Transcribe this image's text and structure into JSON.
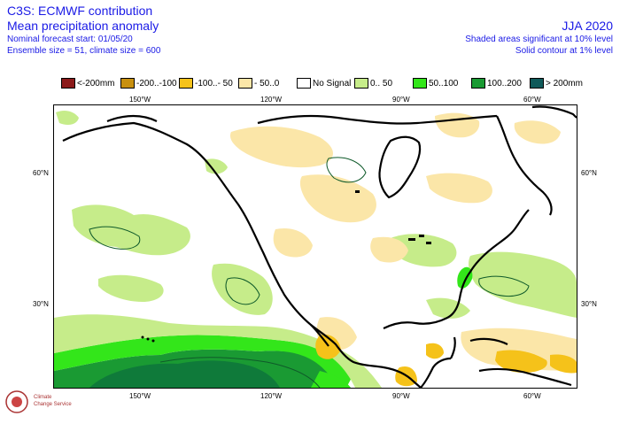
{
  "header": {
    "title": "C3S: ECMWF contribution",
    "subtitle": "Mean precipitation anomaly",
    "forecast_start": "Nominal forecast start: 01/05/20",
    "ensemble": "Ensemble size = 51, climate size = 600",
    "season": "JJA 2020",
    "note_shaded": "Shaded areas significant at 10% level",
    "note_contour": "Solid contour at 1% level"
  },
  "legend": [
    {
      "label": "<-200mm",
      "color": "#8b1a1a"
    },
    {
      "label": "-200..-100",
      "color": "#c8900f"
    },
    {
      "label": "-100..- 50",
      "color": "#f5c21a"
    },
    {
      "label": "- 50..0",
      "color": "#fbe6a8"
    },
    {
      "label": "No Signal",
      "color": "#ffffff"
    },
    {
      "label": "0.. 50",
      "color": "#c6ec8a"
    },
    {
      "label": "50..100",
      "color": "#33e61a"
    },
    {
      "label": "100..200",
      "color": "#1a9a33"
    },
    {
      "label": "> 200mm",
      "color": "#0f5a5a"
    }
  ],
  "axes": {
    "lon_top": [
      "150°W",
      "120°W",
      "90°W",
      "60°W"
    ],
    "lon_bottom": [
      "150°W",
      "120°W",
      "90°W",
      "60°W"
    ],
    "lat_left": [
      "60°N",
      "30°N"
    ],
    "lat_right": [
      "60°N",
      "30°N"
    ]
  },
  "logo": {
    "line1": "Climate",
    "line2": "Change Service"
  }
}
